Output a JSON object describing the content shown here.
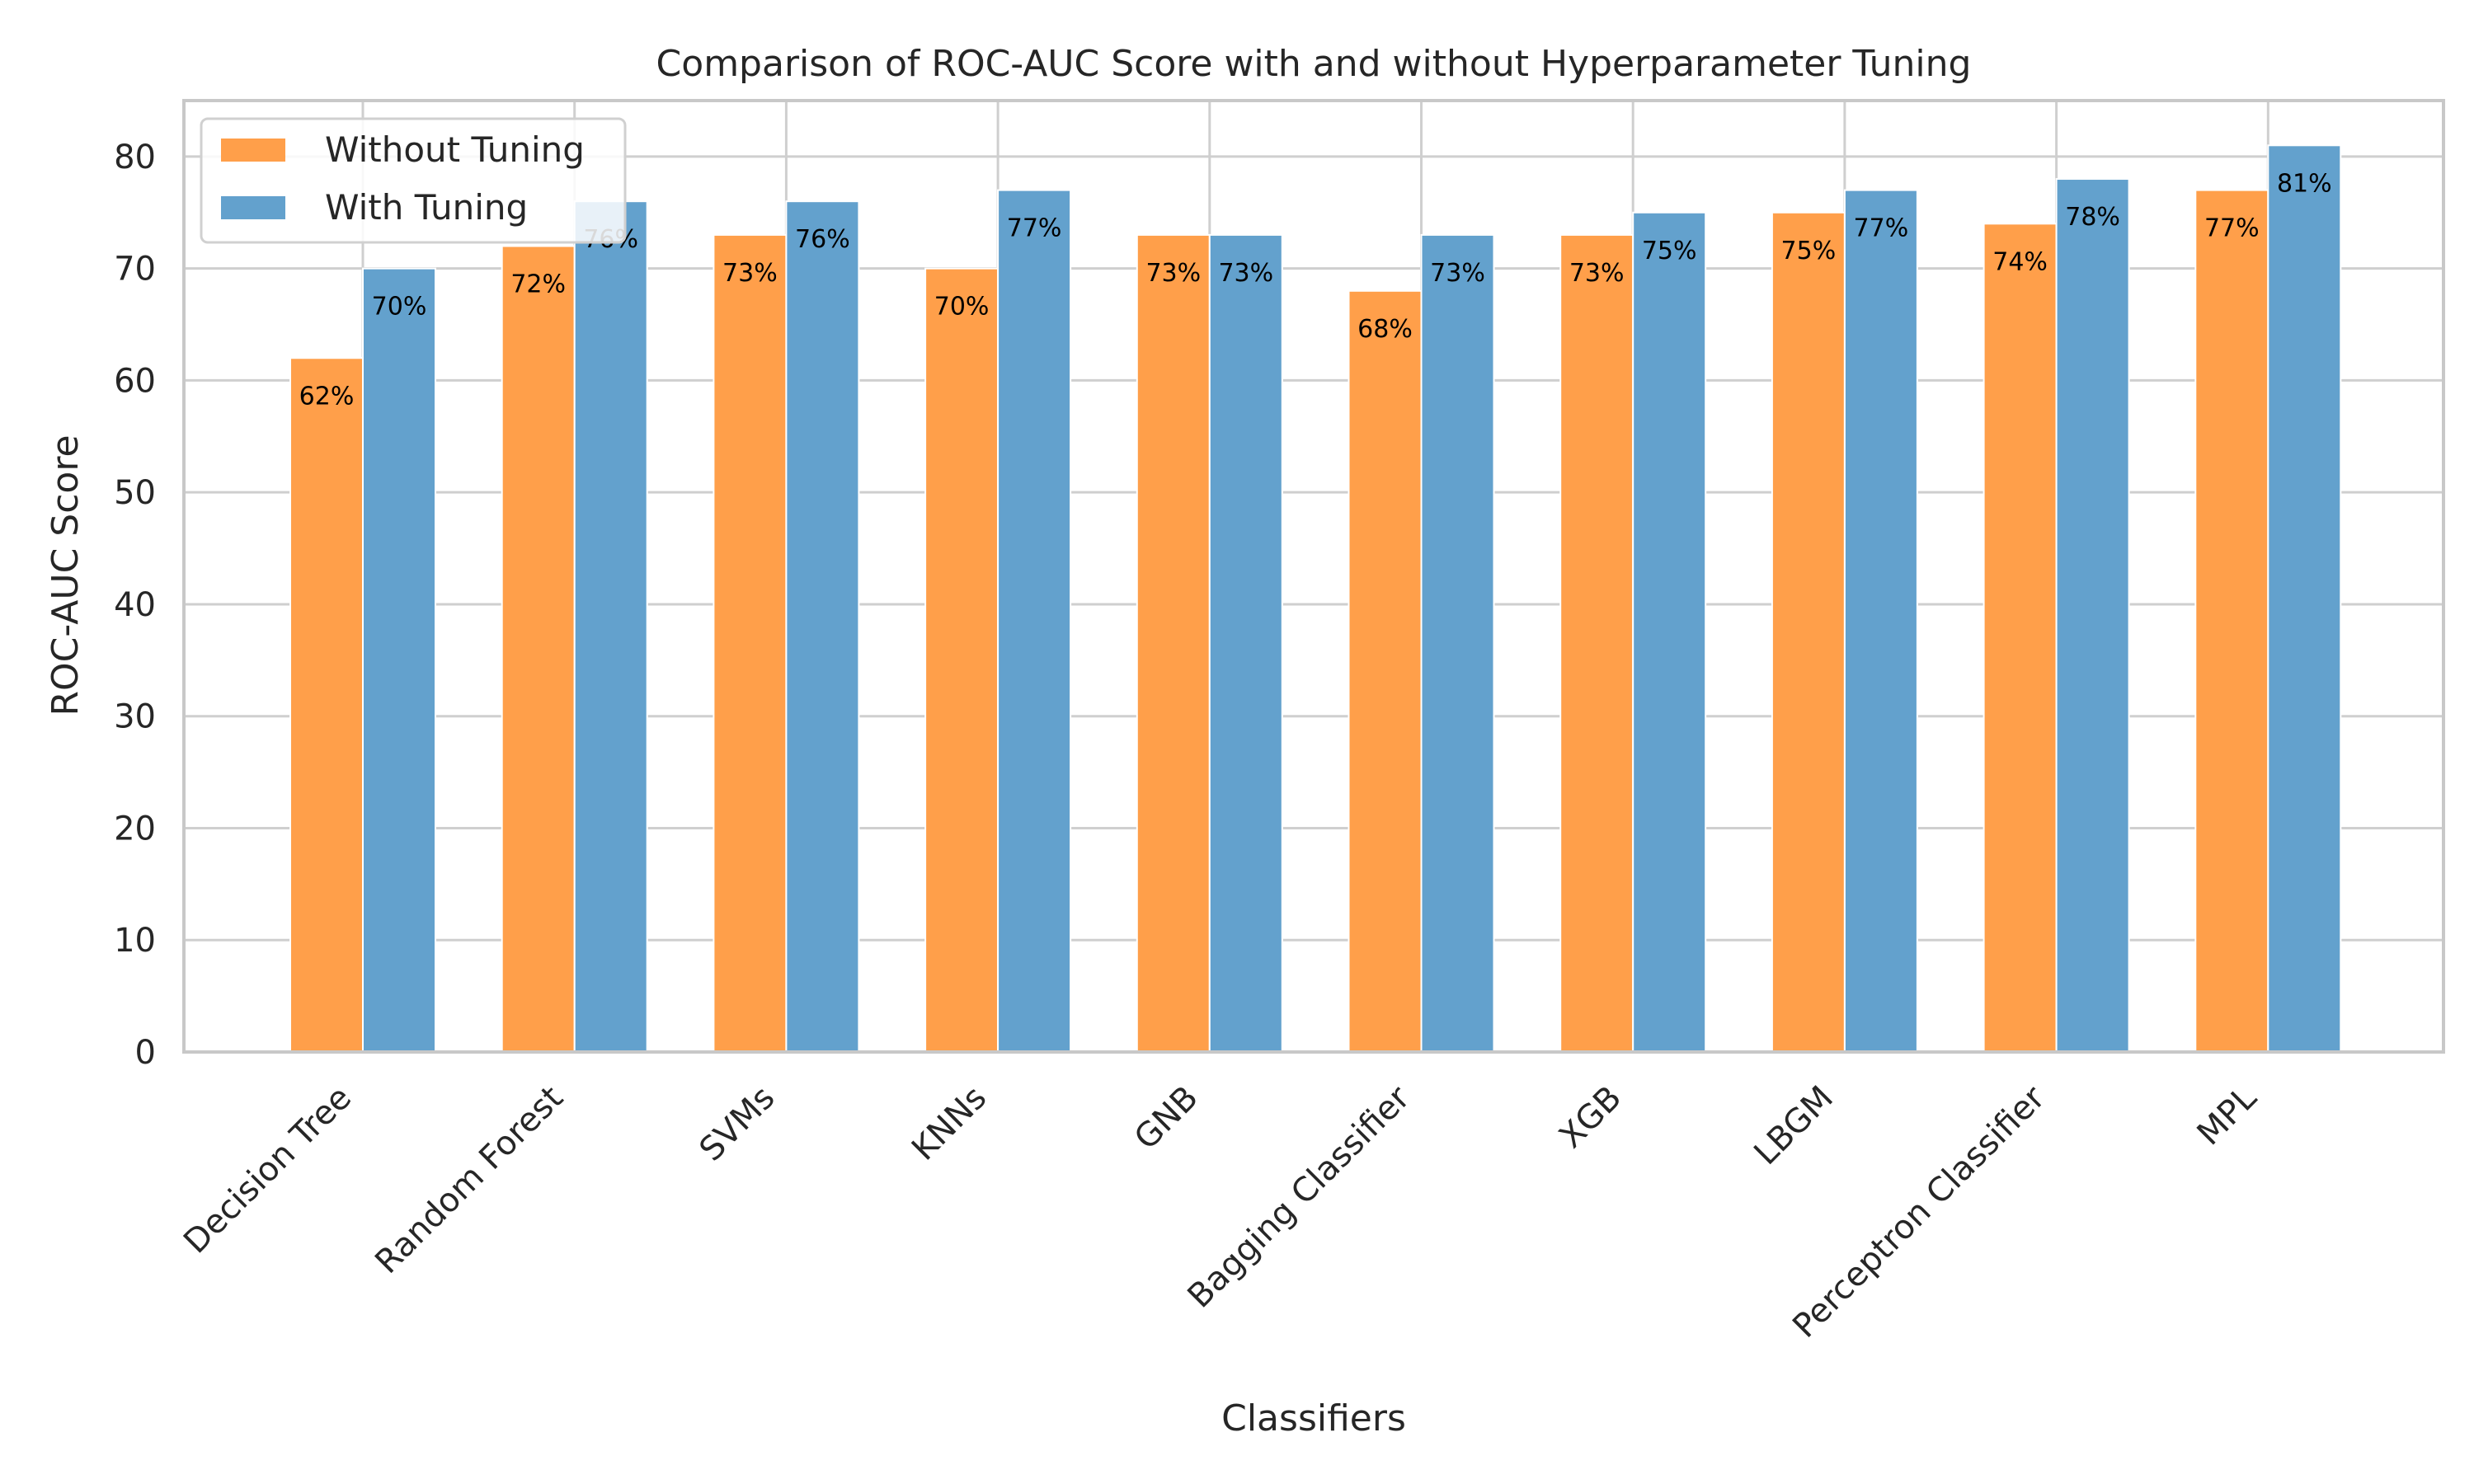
{
  "chart_data": {
    "type": "bar",
    "title": "Comparison of ROC-AUC Score with and without Hyperparameter Tuning",
    "xlabel": "Classifiers",
    "ylabel": "ROC-AUC Score",
    "categories": [
      "Decision Tree",
      "Random Forest",
      "SVMs",
      "KNNs",
      "GNB",
      "Bagging Classifier",
      "XGB",
      "LBGM",
      "Perceptron Classifier",
      "MPL"
    ],
    "series": [
      {
        "name": "Without Tuning",
        "color": "#ff9f4a",
        "values": [
          62,
          72,
          73,
          70,
          73,
          68,
          73,
          75,
          74,
          77
        ],
        "labels": [
          "62%",
          "72%",
          "73%",
          "70%",
          "73%",
          "68%",
          "73%",
          "75%",
          "74%",
          "77%"
        ]
      },
      {
        "name": "With Tuning",
        "color": "#63a1cd",
        "values": [
          70,
          76,
          76,
          77,
          73,
          73,
          75,
          77,
          78,
          81
        ],
        "labels": [
          "70%",
          "76%",
          "76%",
          "77%",
          "73%",
          "73%",
          "75%",
          "77%",
          "78%",
          "81%"
        ]
      }
    ],
    "ylim": [
      0,
      85
    ],
    "yticks": [
      0,
      10,
      20,
      30,
      40,
      50,
      60,
      70,
      80
    ],
    "grid": true,
    "legend_position": "top-left"
  }
}
